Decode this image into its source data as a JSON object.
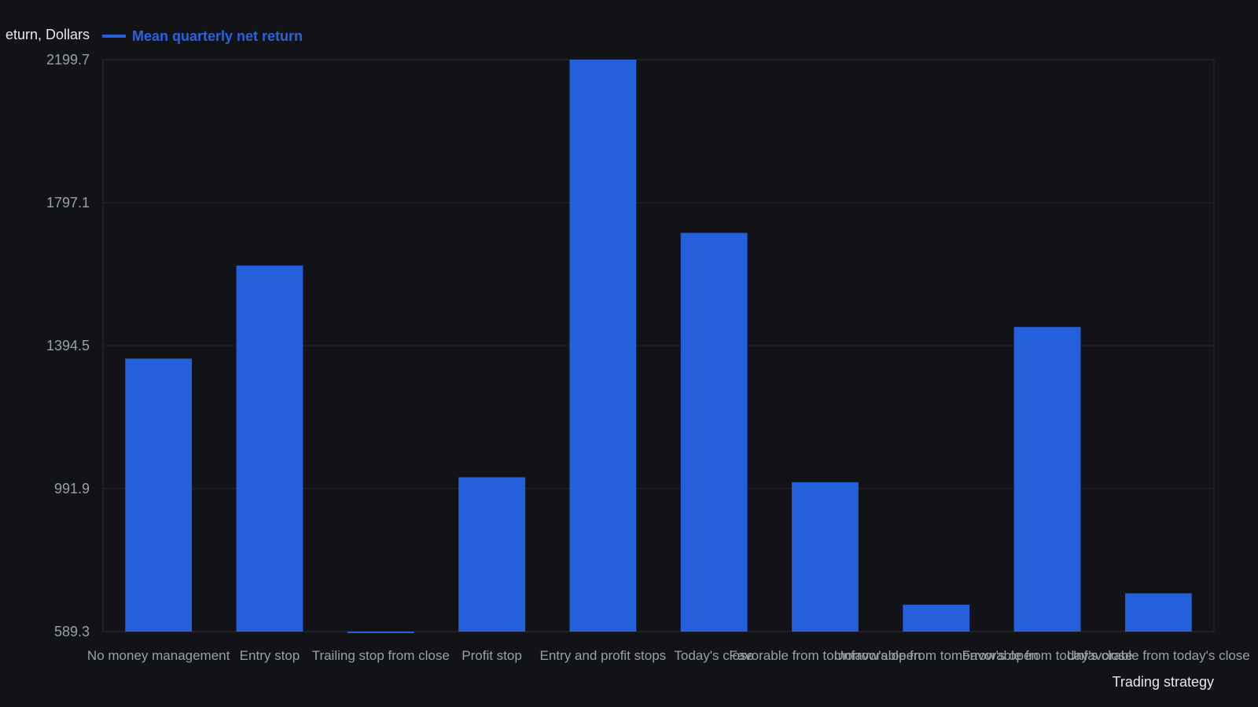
{
  "colors": {
    "background": "#111317",
    "bar": "#2560dc",
    "grid": "#262a31",
    "frame": "#2b3038",
    "tick_text": "#9aa0a8",
    "axis_title_text": "#e6e8eb",
    "legend_text": "#2a62de"
  },
  "chart_data": {
    "type": "bar",
    "title": "",
    "xlabel": "Trading strategy",
    "ylabel": "Mean quarterly net return, Dollars",
    "ylabel_visible": "eturn, Dollars",
    "legend": {
      "position": "top-left",
      "entries": [
        "Mean quarterly net return"
      ]
    },
    "ylim": [
      589.3,
      2199.7
    ],
    "yticks": [
      589.3,
      991.9,
      1394.5,
      1797.1,
      2199.7
    ],
    "ytick_labels": [
      "589.3",
      "991.9",
      "1394.5",
      "1797.1",
      "2199.7"
    ],
    "grid": true,
    "categories": [
      "No money management",
      "Entry stop",
      "Trailing stop from close",
      "Profit stop",
      "Entry and profit stops",
      "Today's close",
      "Favorable from tomorrow's open",
      "Unfavorable from tomorrow's open",
      "Favorable from today's close",
      "Unfavorable from today's close"
    ],
    "series": [
      {
        "name": "Mean quarterly net return",
        "values": [
          1358,
          1620,
          586,
          1024,
          2199.7,
          1712,
          1010,
          665,
          1447,
          697
        ]
      }
    ]
  }
}
